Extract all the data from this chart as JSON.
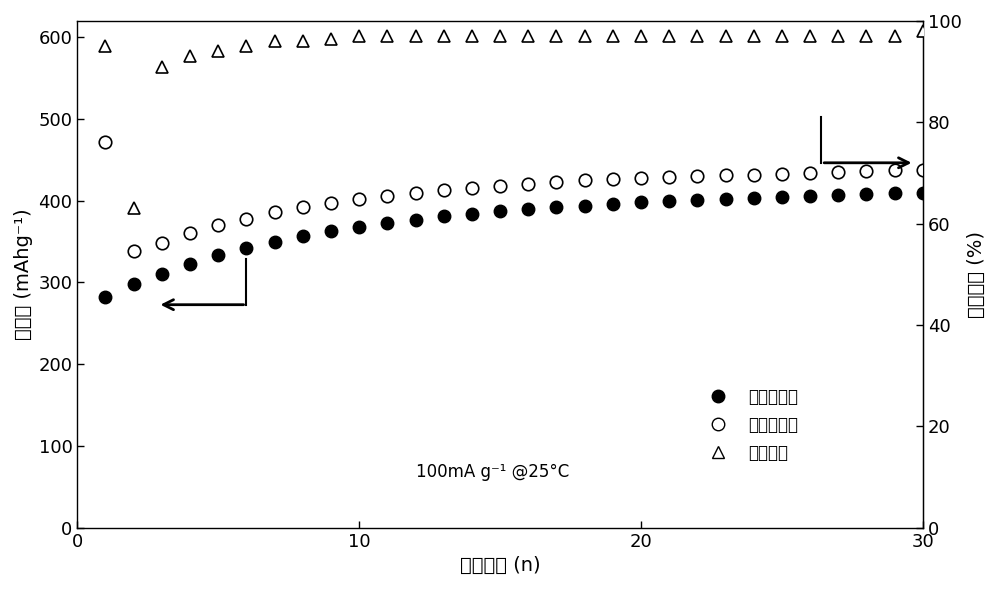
{
  "charge_x": [
    1,
    2,
    3,
    4,
    5,
    6,
    7,
    8,
    9,
    10,
    11,
    12,
    13,
    14,
    15,
    16,
    17,
    18,
    19,
    20,
    21,
    22,
    23,
    24,
    25,
    26,
    27,
    28,
    29,
    30
  ],
  "charge_y": [
    282,
    298,
    310,
    322,
    333,
    342,
    350,
    357,
    363,
    368,
    373,
    377,
    381,
    384,
    387,
    390,
    392,
    394,
    396,
    398,
    400,
    401,
    402,
    403,
    404,
    406,
    407,
    408,
    409,
    410
  ],
  "discharge_x": [
    1,
    2,
    3,
    4,
    5,
    6,
    7,
    8,
    9,
    10,
    11,
    12,
    13,
    14,
    15,
    16,
    17,
    18,
    19,
    20,
    21,
    22,
    23,
    24,
    25,
    26,
    27,
    28,
    29,
    30
  ],
  "discharge_y": [
    472,
    338,
    348,
    360,
    370,
    378,
    386,
    392,
    397,
    402,
    406,
    410,
    413,
    416,
    418,
    421,
    423,
    425,
    426,
    428,
    429,
    430,
    431,
    432,
    433,
    434,
    435,
    436,
    437,
    438
  ],
  "coulomb_x": [
    1,
    2,
    3,
    4,
    5,
    6,
    7,
    8,
    9,
    10,
    11,
    12,
    13,
    14,
    15,
    16,
    17,
    18,
    19,
    20,
    21,
    22,
    23,
    24,
    25,
    26,
    27,
    28,
    29,
    30
  ],
  "coulomb_y": [
    95,
    63,
    91,
    93,
    94,
    95,
    96,
    96,
    96.5,
    97,
    97,
    97,
    97,
    97,
    97,
    97,
    97,
    97,
    97,
    97,
    97,
    97,
    97,
    97,
    97,
    97,
    97,
    97,
    97,
    98
  ],
  "ylabel_left": "比容量 (mAhg⁻¹)",
  "ylabel_right": "库伦效率 (%)",
  "xlabel": "循环次数 (n)",
  "legend_charge": "充电比容量",
  "legend_discharge": "放电比容量",
  "legend_coulomb": "库伦效率",
  "annotation": "100mA g⁻¹ @25°C",
  "xlim": [
    0,
    30
  ],
  "ylim_left": [
    0,
    620
  ],
  "ylim_right": [
    0,
    100
  ],
  "yticks_left": [
    0,
    100,
    200,
    300,
    400,
    500,
    600
  ],
  "yticks_right": [
    0,
    20,
    40,
    60,
    80,
    100
  ],
  "xticks": [
    0,
    10,
    20,
    30
  ]
}
